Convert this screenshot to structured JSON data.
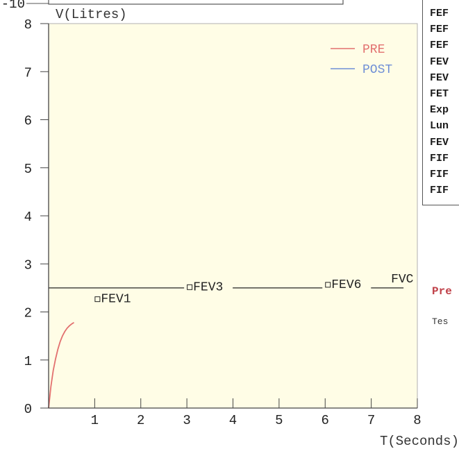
{
  "chart_data": {
    "type": "line",
    "title": "",
    "xlabel": "T(Seconds)",
    "ylabel": "V(Litres)",
    "xlim": [
      0,
      8
    ],
    "ylim": [
      0,
      8
    ],
    "x_ticks": [
      "1",
      "2",
      "3",
      "4",
      "5",
      "6",
      "7",
      "8"
    ],
    "y_ticks": [
      "0",
      "1",
      "2",
      "3",
      "4",
      "5",
      "6",
      "7",
      "8"
    ],
    "top_clipped_label": "-10",
    "legend_placement": "top-right",
    "grid": false,
    "background_color": "#fffde6",
    "series": [
      {
        "name": "PRE",
        "color": "#e2706f",
        "x": [
          0,
          0.05,
          0.1,
          0.15,
          0.2,
          0.25,
          0.3,
          0.35,
          0.4,
          0.45,
          0.5,
          0.55
        ],
        "y": [
          0,
          0.45,
          0.78,
          1.02,
          1.22,
          1.38,
          1.5,
          1.59,
          1.66,
          1.71,
          1.75,
          1.78
        ]
      },
      {
        "name": "POST",
        "color": "#6f8fd6",
        "x": [],
        "y": []
      }
    ],
    "reference_lines": [
      {
        "type": "horizontal",
        "y": 2.5,
        "x_range": [
          0,
          7.7
        ],
        "color": "#222222"
      }
    ],
    "annotations": [
      {
        "label": "FEV1",
        "x": 1,
        "y": 2.2
      },
      {
        "label": "FEV3",
        "x": 3,
        "y": 2.45
      },
      {
        "label": "FEV6",
        "x": 6,
        "y": 2.5
      },
      {
        "label": "FVC",
        "x": 7.7,
        "y": 2.6
      }
    ]
  },
  "side_panel": {
    "rows": [
      "FEF",
      "FEF",
      "FEF",
      "FEV",
      "FEV",
      "FET",
      "Exp",
      "Lun",
      "FEV",
      "FIF",
      "FIF",
      "FIF"
    ]
  },
  "footer": {
    "predicted_label": "Pre",
    "test_label": "Tes"
  }
}
